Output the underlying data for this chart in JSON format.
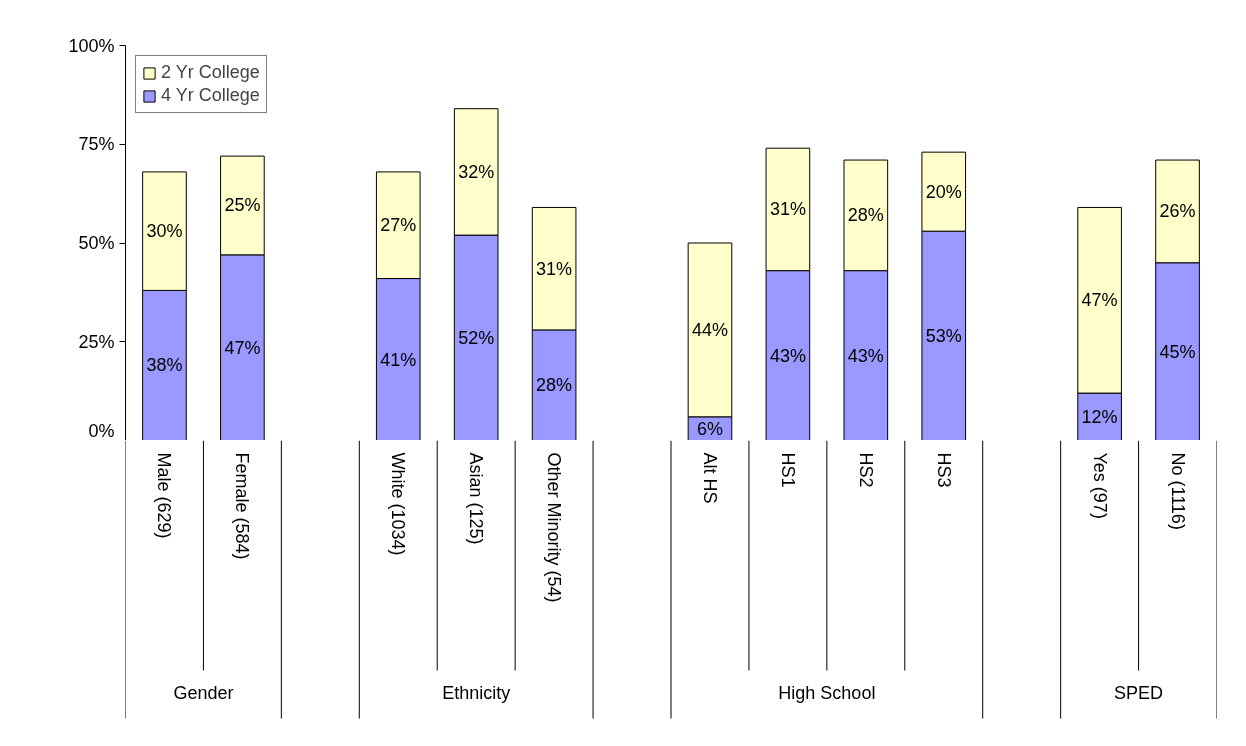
{
  "chart_data": {
    "type": "bar",
    "stacked": true,
    "categories": [
      "Male  (629)",
      "Female  (584)",
      null,
      "White  (1034)",
      "Asian  (125)",
      "Other Minority  (54)",
      null,
      "Alt HS",
      "HS1",
      "HS2",
      "HS3",
      null,
      "Yes  (97)",
      "No (1116)"
    ],
    "series": [
      {
        "name": "4 Yr College",
        "color": "#9999ff",
        "values": [
          38,
          47,
          null,
          41,
          52,
          28,
          null,
          6,
          43,
          43,
          53,
          null,
          12,
          45
        ],
        "value_labels": [
          "38%",
          "47%",
          null,
          "41%",
          "52%",
          "28%",
          null,
          "6%",
          "43%",
          "43%",
          "53%",
          null,
          "12%",
          "45%"
        ]
      },
      {
        "name": "2 Yr College",
        "color": "#ffffcc",
        "values": [
          30,
          25,
          null,
          27,
          32,
          31,
          null,
          44,
          31,
          28,
          20,
          null,
          47,
          26
        ],
        "value_labels": [
          "30%",
          "25%",
          null,
          "27%",
          "32%",
          "31%",
          null,
          "44%",
          "31%",
          "28%",
          "20%",
          null,
          "47%",
          "26%"
        ]
      }
    ],
    "ylim": [
      0,
      100
    ],
    "yticks": [
      {
        "value": 0,
        "label": "0%"
      },
      {
        "value": 25,
        "label": "25%"
      },
      {
        "value": 50,
        "label": "50%"
      },
      {
        "value": 75,
        "label": "75%"
      },
      {
        "value": 100,
        "label": "100%"
      }
    ],
    "annotations": [
      "Gender",
      "Ethnicity",
      "High School",
      "SPED"
    ],
    "legend": "top left",
    "grid": false
  }
}
